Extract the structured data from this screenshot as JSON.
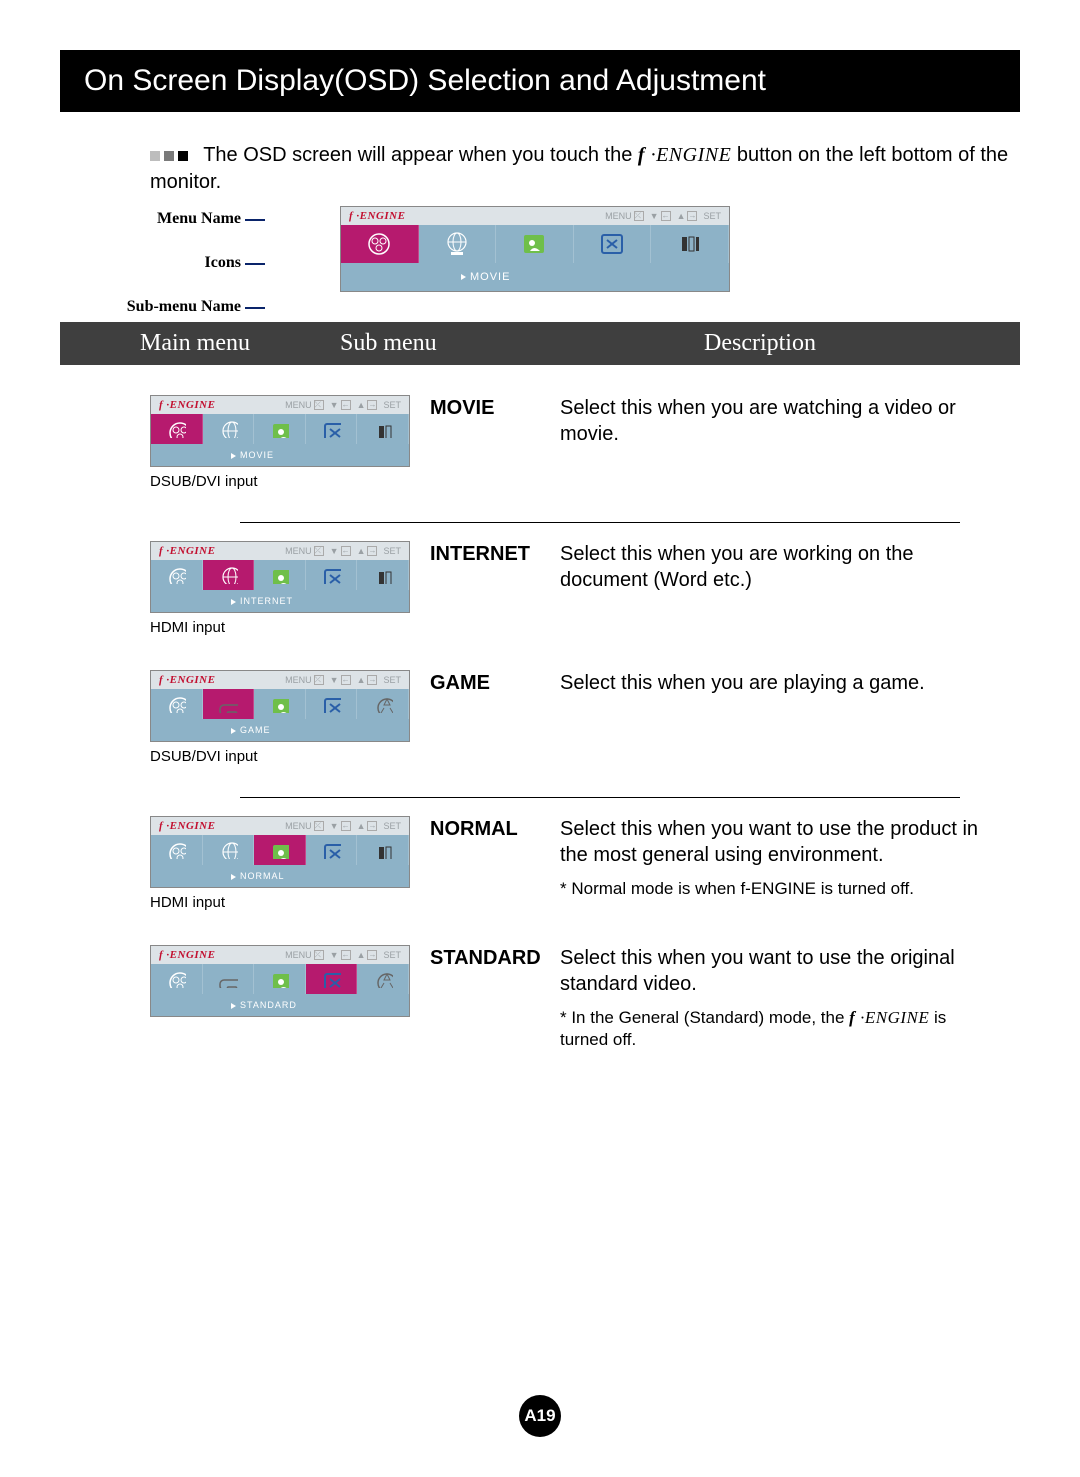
{
  "title": "On Screen Display(OSD) Selection and Adjustment",
  "intro_prefix": "The OSD screen will appear when you touch the ",
  "intro_engine": "f ·ENGINE",
  "intro_suffix": "  button on the left bottom of the monitor.",
  "diagram_labels": {
    "menu_name": "Menu Name",
    "icons": "Icons",
    "sub_menu_name": "Sub-menu Name"
  },
  "osd_common": {
    "engine_label": "f ·ENGINE",
    "menu": "MENU",
    "set": "SET"
  },
  "column_headers": {
    "main": "Main menu",
    "sub": "Sub menu",
    "desc": "Description"
  },
  "rows": [
    {
      "submenu": "MOVIE",
      "desc": "Select this when you are watching a video or movie.",
      "osd_sub": "MOVIE",
      "selected": 0,
      "caption_below": "DSUB/DVI input",
      "iconset": "dsub"
    },
    {
      "submenu": "INTERNET",
      "desc": "Select this when you are working on the document (Word etc.)",
      "osd_sub": "INTERNET",
      "selected": 1,
      "caption_below": "HDMI input",
      "iconset": "dsub"
    },
    {
      "submenu": "GAME",
      "desc": "Select this when you are playing a game.",
      "osd_sub": "GAME",
      "selected": 1,
      "caption_below": "DSUB/DVI input",
      "iconset": "hdmi"
    },
    {
      "submenu": "NORMAL",
      "desc": "Select this when you want to use the product in the most general using environment.",
      "note": "* Normal mode is when f-ENGINE is turned off.",
      "osd_sub": "NORMAL",
      "selected": 2,
      "caption_below": "HDMI input",
      "iconset": "dsub"
    },
    {
      "submenu": "STANDARD",
      "desc": "Select this when you want to use the original standard video.",
      "note_prefix": "* In the General (Standard) mode, the ",
      "note_engine": "f ·ENGINE",
      "note_suffix": " is turned off.",
      "osd_sub": "STANDARD",
      "selected": 3,
      "iconset": "hdmi"
    }
  ],
  "page_number": "A19",
  "colors": {
    "selected_bg": "#b61a6e",
    "icon_row_bg": "#8db2c7",
    "engine_red": "#c20f2f"
  }
}
